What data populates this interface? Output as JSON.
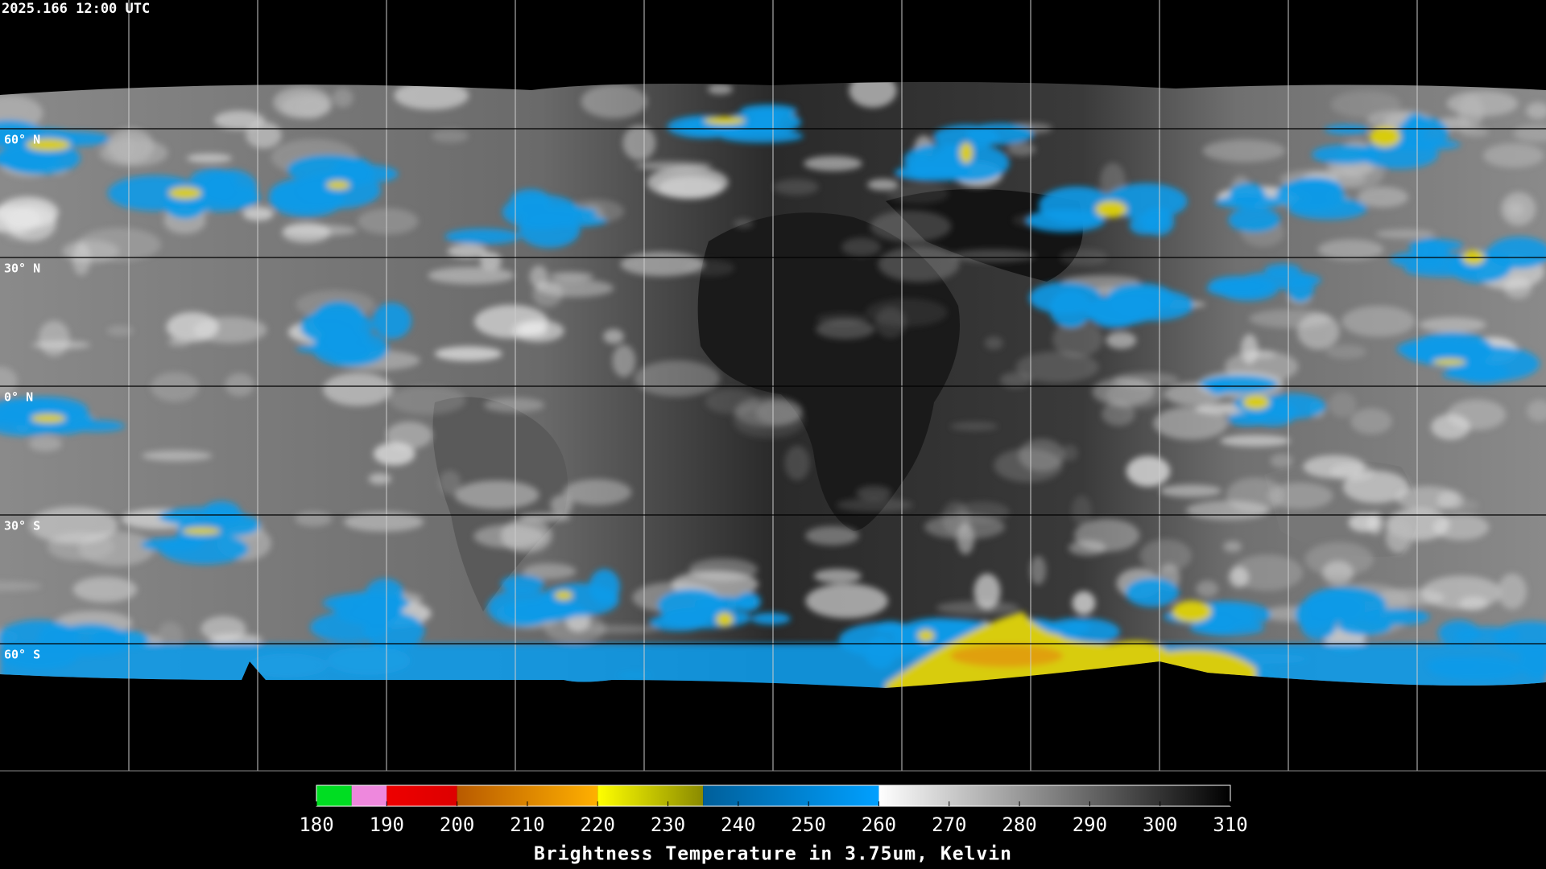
{
  "timestamp": "2025.166 12:00 UTC",
  "latitude_labels": [
    "60° N",
    "30° N",
    "0° N",
    "30° S",
    "60° S"
  ],
  "colorbar": {
    "title": "Brightness Temperature in 3.75um, Kelvin",
    "range": [
      180,
      310
    ],
    "ticks": [
      180,
      190,
      200,
      210,
      220,
      230,
      240,
      250,
      260,
      270,
      280,
      290,
      300,
      310
    ],
    "segments": [
      {
        "from": 180,
        "to": 185,
        "color_start": "#00dd22",
        "color_end": "#00dd22"
      },
      {
        "from": 185,
        "to": 190,
        "color_start": "#ee88dd",
        "color_end": "#ee88dd"
      },
      {
        "from": 190,
        "to": 200,
        "color_start": "#ee0000",
        "color_end": "#dd0000"
      },
      {
        "from": 200,
        "to": 220,
        "color_start": "#b85a00",
        "color_end": "#ffb000"
      },
      {
        "from": 220,
        "to": 235,
        "color_start": "#ffff00",
        "color_end": "#8a8a00"
      },
      {
        "from": 235,
        "to": 260,
        "color_start": "#005f9a",
        "color_end": "#00a0ff"
      },
      {
        "from": 260,
        "to": 310,
        "color_start": "#ffffff",
        "color_end": "#000000"
      }
    ]
  }
}
